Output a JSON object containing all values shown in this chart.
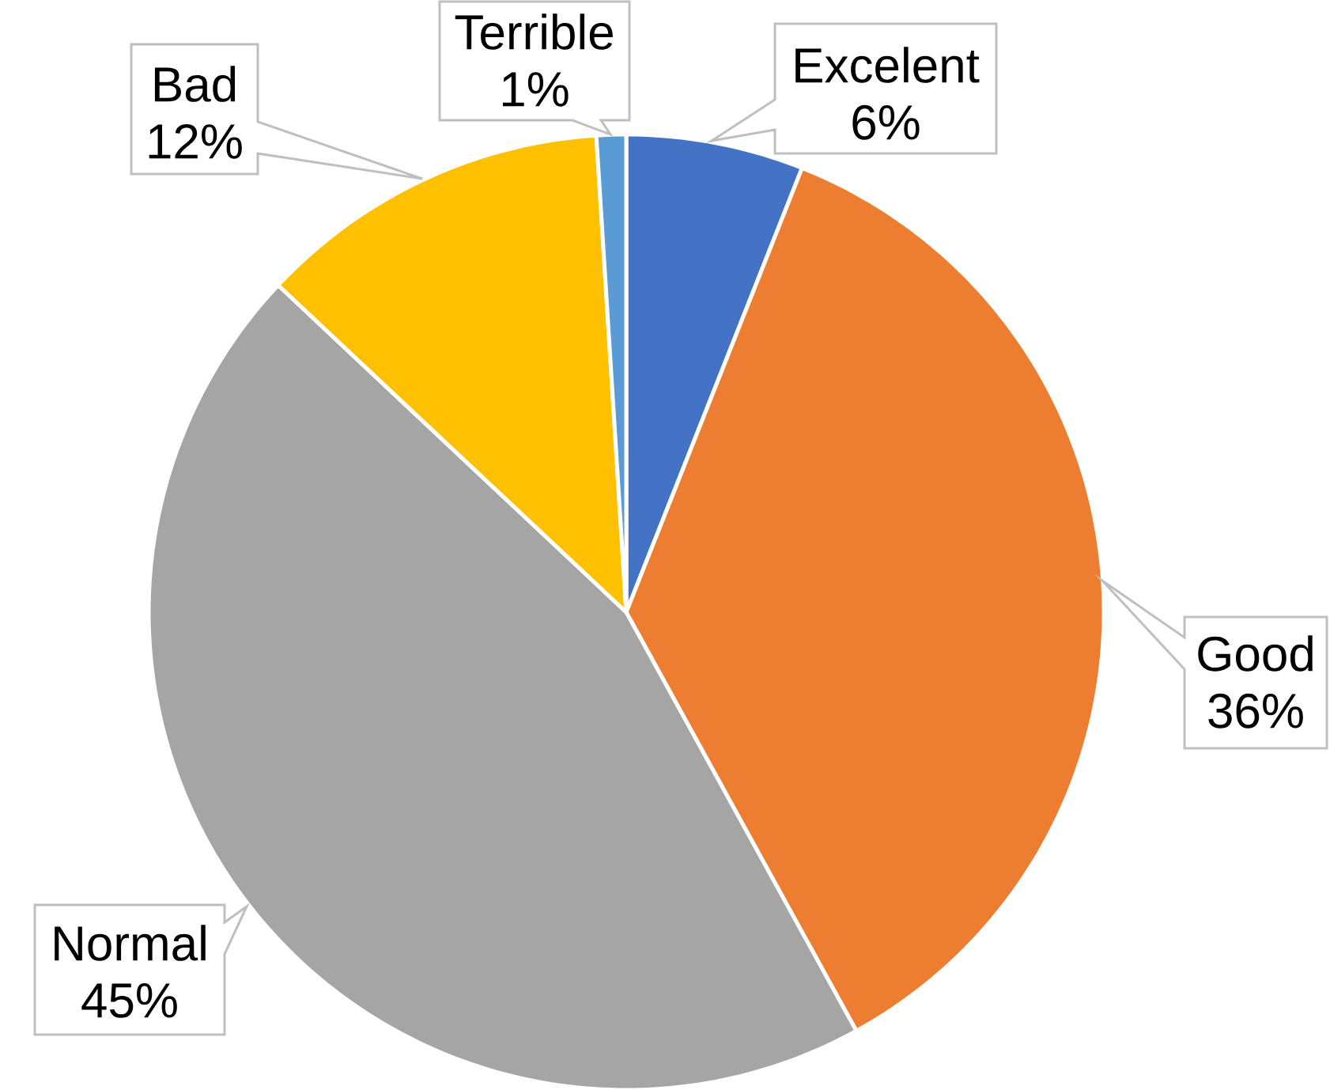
{
  "chart_data": {
    "type": "pie",
    "categories": [
      "Excelent",
      "Good",
      "Normal",
      "Bad",
      "Terrible"
    ],
    "values": [
      6,
      36,
      45,
      12,
      1
    ],
    "value_labels": [
      "6%",
      "36%",
      "45%",
      "12%",
      "1%"
    ],
    "colors": [
      "#4472c4",
      "#ed7d31",
      "#a5a5a5",
      "#ffc000",
      "#5b9bd5"
    ]
  }
}
